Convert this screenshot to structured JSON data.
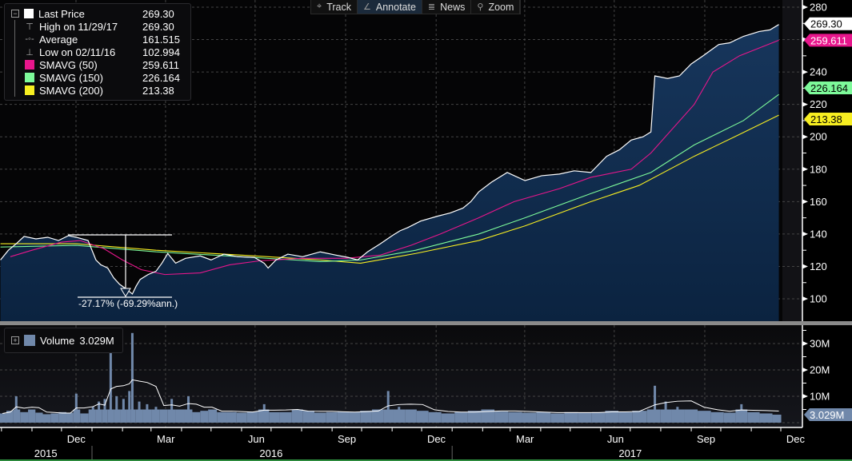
{
  "toolbar": [
    {
      "label": "Track",
      "icon": "crosshair-icon",
      "glyph": "⌖"
    },
    {
      "label": "Annotate",
      "icon": "pencil-icon",
      "glyph": "∠",
      "active": true
    },
    {
      "label": "News",
      "icon": "news-icon",
      "glyph": "≣"
    },
    {
      "label": "Zoom",
      "icon": "magnifier-icon",
      "glyph": "⚲"
    }
  ],
  "legend": {
    "items": [
      {
        "name": "Last Price",
        "value": "269.30",
        "swatch": "#ffffff"
      },
      {
        "name": "High on 11/29/17",
        "value": "269.30",
        "glyph": "⊤"
      },
      {
        "name": "Average",
        "value": "161.515",
        "glyph": "-◦-"
      },
      {
        "name": "Low on 02/11/16",
        "value": "102.994",
        "glyph": "⊥"
      },
      {
        "name": "SMAVG (50)",
        "value": "259.611",
        "swatch": "#e8168c"
      },
      {
        "name": "SMAVG (150)",
        "value": "226.164",
        "swatch": "#7dfa9a"
      },
      {
        "name": "SMAVG (200)",
        "value": "213.38",
        "swatch": "#f7ee21"
      }
    ]
  },
  "volume_legend": {
    "name": "Volume",
    "value": "3.029M",
    "swatch": "#7088aa"
  },
  "annotation": {
    "text": "-27.17% (-69.29%ann.)"
  },
  "chart_data": [
    {
      "type": "line",
      "title": "",
      "ylim": [
        90,
        282
      ],
      "yticks": [
        100,
        120,
        140,
        160,
        180,
        200,
        220,
        240,
        260,
        280
      ],
      "ytick_labels": [
        "100",
        "120",
        "140",
        "160",
        "180",
        "200",
        "220",
        "240",
        "",
        "280"
      ],
      "xlim": [
        "2015-09-30",
        "2017-12-07"
      ],
      "grid": true,
      "legend_placement": "top-left",
      "series": [
        {
          "name": "Last Price",
          "color": "#ffffff",
          "fill": "#0f2a4a",
          "last_label": "269.30",
          "points": [
            [
              "2015-09-30",
              124
            ],
            [
              "2015-10-08",
              130
            ],
            [
              "2015-10-16",
              134
            ],
            [
              "2015-10-24",
              138.5
            ],
            [
              "2015-11-05",
              137
            ],
            [
              "2015-11-17",
              138
            ],
            [
              "2015-11-28",
              136
            ],
            [
              "2015-12-08",
              139
            ],
            [
              "2015-12-16",
              138
            ],
            [
              "2015-12-28",
              136
            ],
            [
              "2016-01-05",
              124
            ],
            [
              "2016-01-10",
              121
            ],
            [
              "2016-01-17",
              119
            ],
            [
              "2016-01-23",
              113
            ],
            [
              "2016-01-29",
              109
            ],
            [
              "2016-02-05",
              106
            ],
            [
              "2016-02-11",
              102.994
            ],
            [
              "2016-02-15",
              108
            ],
            [
              "2016-02-19",
              112
            ],
            [
              "2016-02-27",
              115
            ],
            [
              "2016-03-06",
              117
            ],
            [
              "2016-03-12",
              122
            ],
            [
              "2016-03-18",
              128
            ],
            [
              "2016-03-26",
              122
            ],
            [
              "2016-04-05",
              125
            ],
            [
              "2016-04-20",
              126.5
            ],
            [
              "2016-05-01",
              124
            ],
            [
              "2016-05-14",
              127.6
            ],
            [
              "2016-05-28",
              126
            ],
            [
              "2016-06-14",
              125.6
            ],
            [
              "2016-06-24",
              122
            ],
            [
              "2016-06-28",
              119
            ],
            [
              "2016-07-06",
              124
            ],
            [
              "2016-07-18",
              127.6
            ],
            [
              "2016-08-02",
              126
            ],
            [
              "2016-08-20",
              129
            ],
            [
              "2016-09-05",
              127
            ],
            [
              "2016-09-17",
              125.6
            ],
            [
              "2016-09-27",
              124
            ],
            [
              "2016-10-07",
              129
            ],
            [
              "2016-10-20",
              134
            ],
            [
              "2016-11-01",
              139
            ],
            [
              "2016-11-09",
              142
            ],
            [
              "2016-11-17",
              144
            ],
            [
              "2016-11-30",
              148
            ],
            [
              "2016-12-17",
              151
            ],
            [
              "2016-12-30",
              153
            ],
            [
              "2017-01-12",
              156
            ],
            [
              "2017-01-20",
              160
            ],
            [
              "2017-01-28",
              166
            ],
            [
              "2017-02-10",
              172
            ],
            [
              "2017-02-26",
              178
            ],
            [
              "2017-03-16",
              173
            ],
            [
              "2017-04-02",
              176
            ],
            [
              "2017-04-20",
              177
            ],
            [
              "2017-05-05",
              179
            ],
            [
              "2017-05-22",
              178
            ],
            [
              "2017-06-07",
              188
            ],
            [
              "2017-06-20",
              192
            ],
            [
              "2017-07-02",
              198
            ],
            [
              "2017-07-14",
              200
            ],
            [
              "2017-07-22",
              203
            ],
            [
              "2017-07-26",
              237.6
            ],
            [
              "2017-08-08",
              236
            ],
            [
              "2017-08-20",
              237.6
            ],
            [
              "2017-09-01",
              245
            ],
            [
              "2017-09-13",
              250
            ],
            [
              "2017-09-29",
              257
            ],
            [
              "2017-10-10",
              258
            ],
            [
              "2017-10-24",
              262
            ],
            [
              "2017-11-09",
              265
            ],
            [
              "2017-11-20",
              266
            ],
            [
              "2017-11-29",
              269.3
            ]
          ]
        },
        {
          "name": "SMAVG (50)",
          "color": "#e8168c",
          "last_label": "259.611",
          "points": [
            [
              "2015-10-10",
              126
            ],
            [
              "2015-11-01",
              130
            ],
            [
              "2015-12-01",
              135
            ],
            [
              "2015-12-20",
              136
            ],
            [
              "2016-01-13",
              131
            ],
            [
              "2016-02-01",
              124
            ],
            [
              "2016-02-20",
              118
            ],
            [
              "2016-03-15",
              115
            ],
            [
              "2016-04-20",
              116
            ],
            [
              "2016-05-20",
              121
            ],
            [
              "2016-06-20",
              123.5
            ],
            [
              "2016-08-01",
              125
            ],
            [
              "2016-09-15",
              125
            ],
            [
              "2016-10-20",
              127
            ],
            [
              "2016-11-20",
              133
            ],
            [
              "2016-12-20",
              140
            ],
            [
              "2017-01-28",
              150
            ],
            [
              "2017-03-05",
              160
            ],
            [
              "2017-04-20",
              168
            ],
            [
              "2017-05-22",
              175
            ],
            [
              "2017-07-02",
              180
            ],
            [
              "2017-07-22",
              190
            ],
            [
              "2017-09-04",
              220
            ],
            [
              "2017-09-23",
              240
            ],
            [
              "2017-10-20",
              250
            ],
            [
              "2017-11-29",
              259.611
            ]
          ]
        },
        {
          "name": "SMAVG (150)",
          "color": "#7dfa9a",
          "last_label": "226.164",
          "points": [
            [
              "2015-09-30",
              132
            ],
            [
              "2015-12-16",
              133
            ],
            [
              "2016-03-06",
              129
            ],
            [
              "2016-06-01",
              126
            ],
            [
              "2016-08-20",
              123
            ],
            [
              "2016-09-30",
              124
            ],
            [
              "2016-11-25",
              130
            ],
            [
              "2017-01-28",
              140
            ],
            [
              "2017-03-16",
              150
            ],
            [
              "2017-05-22",
              165
            ],
            [
              "2017-07-22",
              178
            ],
            [
              "2017-09-04",
              195
            ],
            [
              "2017-10-24",
              210
            ],
            [
              "2017-11-29",
              226.164
            ]
          ]
        },
        {
          "name": "SMAVG (200)",
          "color": "#f7ee21",
          "last_label": "213.38",
          "points": [
            [
              "2015-09-30",
              134
            ],
            [
              "2015-12-16",
              134
            ],
            [
              "2016-03-06",
              130
            ],
            [
              "2016-06-01",
              127
            ],
            [
              "2016-08-20",
              124
            ],
            [
              "2016-09-30",
              122
            ],
            [
              "2016-11-25",
              128
            ],
            [
              "2017-01-28",
              136
            ],
            [
              "2017-03-16",
              145
            ],
            [
              "2017-05-22",
              160
            ],
            [
              "2017-07-10",
              170
            ],
            [
              "2017-09-04",
              188
            ],
            [
              "2017-10-15",
              200
            ],
            [
              "2017-11-29",
              213.38
            ]
          ]
        }
      ]
    },
    {
      "type": "bar",
      "title": "",
      "ylim": [
        0,
        38
      ],
      "yticks": [
        0,
        10,
        20,
        30
      ],
      "ytick_labels": [
        "0",
        "10M",
        "20M",
        "30M"
      ],
      "grid": true,
      "last_label": "3.029M",
      "series": [
        {
          "name": "Volume",
          "color": "#7088aa",
          "points": [
            [
              "2015-10-02",
              3.5
            ],
            [
              "2015-10-10",
              4.5
            ],
            [
              "2015-10-16",
              10
            ],
            [
              "2015-10-24",
              4
            ],
            [
              "2015-11-01",
              5
            ],
            [
              "2015-11-08",
              3.8
            ],
            [
              "2015-11-16",
              3.2
            ],
            [
              "2015-11-24",
              3.5
            ],
            [
              "2015-12-02",
              4
            ],
            [
              "2015-12-10",
              3.8
            ],
            [
              "2015-12-16",
              11
            ],
            [
              "2015-12-24",
              3.5
            ],
            [
              "2016-01-02",
              6
            ],
            [
              "2016-01-08",
              8
            ],
            [
              "2016-01-14",
              9
            ],
            [
              "2016-01-20",
              28
            ],
            [
              "2016-01-26",
              10
            ],
            [
              "2016-02-02",
              9
            ],
            [
              "2016-02-08",
              12
            ],
            [
              "2016-02-11",
              34
            ],
            [
              "2016-02-18",
              8
            ],
            [
              "2016-02-26",
              7
            ],
            [
              "2016-03-06",
              6
            ],
            [
              "2016-03-14",
              5
            ],
            [
              "2016-03-22",
              9
            ],
            [
              "2016-03-30",
              5
            ],
            [
              "2016-04-08",
              10
            ],
            [
              "2016-04-16",
              4
            ],
            [
              "2016-04-24",
              4.5
            ],
            [
              "2016-05-02",
              5
            ],
            [
              "2016-05-12",
              4
            ],
            [
              "2016-05-22",
              4
            ],
            [
              "2016-06-01",
              3.8
            ],
            [
              "2016-06-12",
              4.2
            ],
            [
              "2016-06-24",
              7
            ],
            [
              "2016-07-04",
              4
            ],
            [
              "2016-07-16",
              4
            ],
            [
              "2016-07-28",
              5
            ],
            [
              "2016-08-08",
              4.5
            ],
            [
              "2016-08-20",
              3.8
            ],
            [
              "2016-09-01",
              4
            ],
            [
              "2016-09-12",
              4.2
            ],
            [
              "2016-09-24",
              4
            ],
            [
              "2016-10-05",
              4.5
            ],
            [
              "2016-10-18",
              5
            ],
            [
              "2016-10-28",
              12
            ],
            [
              "2016-11-08",
              6
            ],
            [
              "2016-11-20",
              5
            ],
            [
              "2016-12-02",
              4.5
            ],
            [
              "2016-12-14",
              4
            ],
            [
              "2016-12-28",
              3.5
            ],
            [
              "2017-01-10",
              4
            ],
            [
              "2017-01-24",
              4.5
            ],
            [
              "2017-02-06",
              5
            ],
            [
              "2017-02-20",
              4.2
            ],
            [
              "2017-03-06",
              4
            ],
            [
              "2017-03-20",
              3.8
            ],
            [
              "2017-04-04",
              4
            ],
            [
              "2017-04-18",
              3.5
            ],
            [
              "2017-05-02",
              4
            ],
            [
              "2017-05-16",
              3.8
            ],
            [
              "2017-05-30",
              4
            ],
            [
              "2017-06-12",
              4.5
            ],
            [
              "2017-06-26",
              4
            ],
            [
              "2017-07-10",
              4.5
            ],
            [
              "2017-07-26",
              14
            ],
            [
              "2017-08-06",
              8
            ],
            [
              "2017-08-18",
              6
            ],
            [
              "2017-09-01",
              5
            ],
            [
              "2017-09-14",
              4.5
            ],
            [
              "2017-09-28",
              4
            ],
            [
              "2017-10-10",
              3.8
            ],
            [
              "2017-10-22",
              7
            ],
            [
              "2017-11-03",
              4
            ],
            [
              "2017-11-16",
              3.5
            ],
            [
              "2017-11-29",
              3.029
            ]
          ]
        }
      ]
    }
  ],
  "x_axis": {
    "months": [
      [
        "2015-12-16",
        "Dec"
      ],
      [
        "2016-03-16",
        "Mar"
      ],
      [
        "2016-06-16",
        "Jun"
      ],
      [
        "2016-09-16",
        "Sep"
      ],
      [
        "2016-12-16",
        "Dec"
      ],
      [
        "2017-03-16",
        "Mar"
      ],
      [
        "2017-06-16",
        "Jun"
      ],
      [
        "2017-09-16",
        "Sep"
      ],
      [
        "2017-12-16",
        "Dec"
      ]
    ],
    "years": [
      [
        "2015-11-15",
        "2015"
      ],
      [
        "2016-07-01",
        "2016"
      ],
      [
        "2017-07-01",
        "2017"
      ]
    ]
  }
}
